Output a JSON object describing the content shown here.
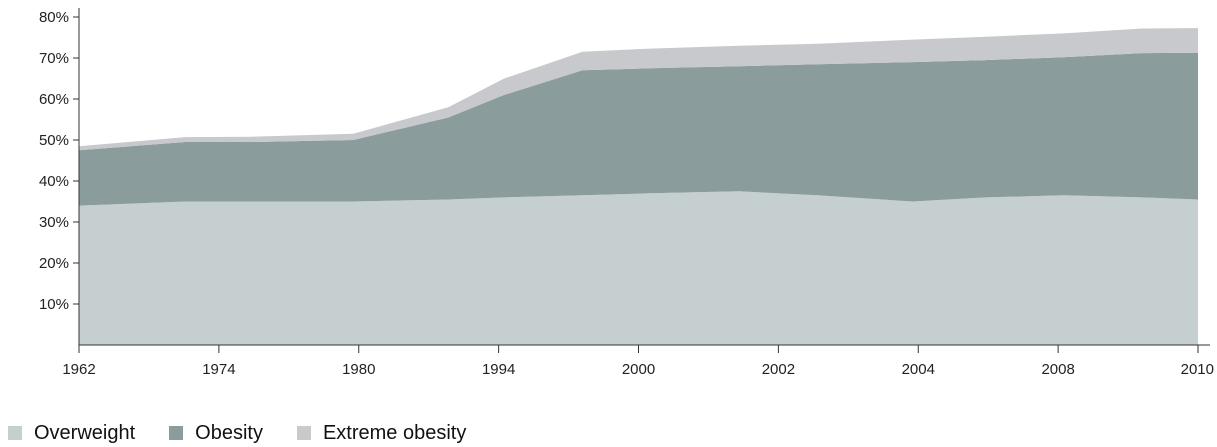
{
  "chart_data": {
    "type": "area",
    "stacked": true,
    "categories": [
      "1962",
      "1974",
      "1980",
      "1994",
      "2000",
      "2002",
      "2004",
      "2008",
      "2010"
    ],
    "x": [
      0,
      0.095,
      0.155,
      0.245,
      0.33,
      0.38,
      0.45,
      0.51,
      0.59,
      0.66,
      0.745,
      0.81,
      0.88,
      0.95,
      1.0
    ],
    "series": [
      {
        "name": "Overweight",
        "color": "#c5cfcf",
        "values": [
          34,
          35,
          35,
          35,
          35.5,
          36,
          36.5,
          37,
          37.5,
          36.5,
          35,
          36,
          36.5,
          36,
          35.5
        ]
      },
      {
        "name": "Obesity",
        "color": "#8a9c9c",
        "values": [
          13.5,
          14.5,
          14.5,
          15,
          20,
          25,
          30.5,
          30.5,
          30.5,
          32,
          34,
          33.5,
          33.7,
          35.2,
          35.8
        ]
      },
      {
        "name": "Extreme obesity",
        "color": "#c8c9cc",
        "values": [
          1,
          1.2,
          1.3,
          1.5,
          2.5,
          4,
          4.5,
          4.8,
          5,
          5,
          5.5,
          5.7,
          5.8,
          6,
          6
        ]
      }
    ],
    "y_ticks": [
      "10%",
      "20%",
      "30%",
      "40%",
      "50%",
      "60%",
      "70%",
      "80%"
    ],
    "ylim": [
      0,
      80
    ],
    "grid": false,
    "legend_position": "bottom-left"
  }
}
